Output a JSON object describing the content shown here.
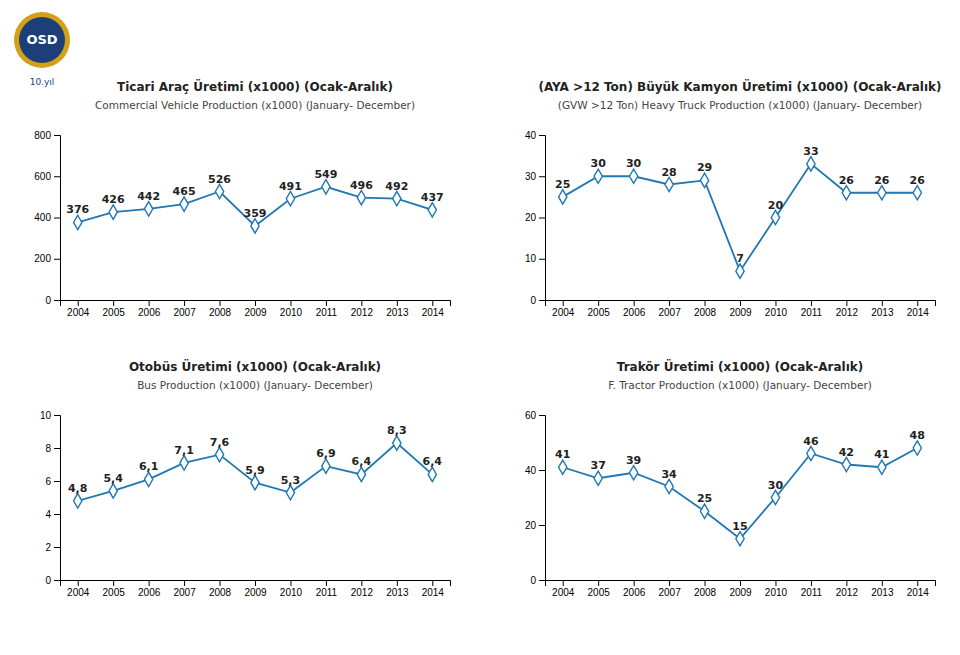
{
  "chart_data": [
    {
      "type": "line",
      "title": "Ticari Araç Üretimi (x1000) (Ocak-Aralık)",
      "subtitle": "Commercial Vehicle Production (x1000) (January- December)",
      "annotations": [
        "OSD",
        "10.yıl"
      ],
      "categories": [
        "2004",
        "2005",
        "2006",
        "2007",
        "2008",
        "2009",
        "2010",
        "2011",
        "2012",
        "2013",
        "2014"
      ],
      "values": [
        376,
        426,
        442,
        465,
        526,
        359,
        491,
        549,
        496,
        492,
        437
      ],
      "ylim": [
        0,
        800
      ],
      "yticks": [
        0,
        200,
        400,
        600,
        800
      ],
      "marker": "diamond",
      "data_labels": true,
      "grid": false
    },
    {
      "type": "line",
      "title": "(AYA >12 Ton) Büyük Kamyon Üretimi (x1000) (Ocak-Aralık)",
      "subtitle": "(GVW >12 Ton) Heavy Truck Production (x1000) (January- December)",
      "categories": [
        "2004",
        "2005",
        "2006",
        "2007",
        "2008",
        "2009",
        "2010",
        "2011",
        "2012",
        "2013",
        "2014"
      ],
      "values": [
        25,
        30,
        30,
        28,
        29,
        7,
        20,
        33,
        26,
        26,
        26
      ],
      "ylim": [
        0,
        40
      ],
      "yticks": [
        0,
        10,
        20,
        30,
        40
      ],
      "marker": "diamond",
      "data_labels": true,
      "grid": false
    },
    {
      "type": "line",
      "title": "Otobüs Üretimi (x1000) (Ocak-Aralık)",
      "subtitle": "Bus Production (x1000) (January- December)",
      "categories": [
        "2004",
        "2005",
        "2006",
        "2007",
        "2008",
        "2009",
        "2010",
        "2011",
        "2012",
        "2013",
        "2014"
      ],
      "values": [
        4.8,
        5.4,
        6.1,
        7.1,
        7.6,
        5.9,
        5.3,
        6.9,
        6.4,
        8.3,
        6.4
      ],
      "value_labels": [
        "4,8",
        "5,4",
        "6,1",
        "7,1",
        "7,6",
        "5,9",
        "5,3",
        "6,9",
        "6,4",
        "8,3",
        "6,4"
      ],
      "ylim": [
        0,
        10
      ],
      "yticks": [
        0,
        2,
        4,
        6,
        8,
        10
      ],
      "marker": "diamond",
      "data_labels": true,
      "grid": false
    },
    {
      "type": "line",
      "title": "Trakör Üretimi (x1000) (Ocak-Aralık)",
      "subtitle": "F. Tractor Production (x1000) (January- December)",
      "categories": [
        "2004",
        "2005",
        "2006",
        "2007",
        "2008",
        "2009",
        "2010",
        "2011",
        "2012",
        "2013",
        "2014"
      ],
      "values": [
        41,
        37,
        39,
        34,
        25,
        15,
        30,
        46,
        42,
        41,
        48
      ],
      "ylim": [
        0,
        60
      ],
      "yticks": [
        0,
        20,
        40,
        60
      ],
      "marker": "diamond",
      "data_labels": true,
      "grid": false
    }
  ]
}
